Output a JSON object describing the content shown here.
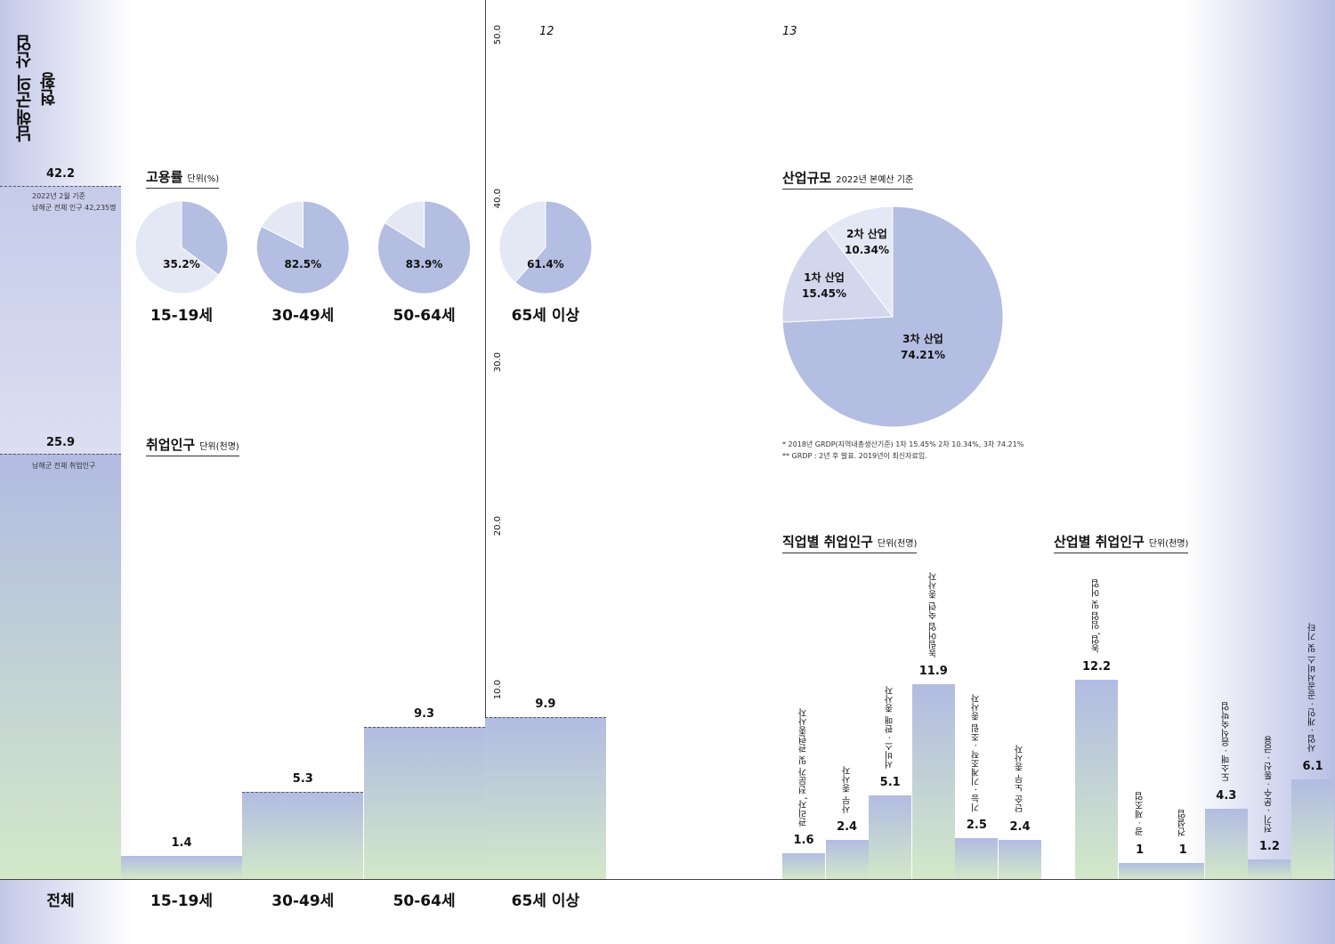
{
  "title": "남해군의 산업 현황",
  "pages": [
    "12",
    "13"
  ],
  "total": {
    "label": "전체",
    "population_value": "42.2",
    "population_note": [
      "2022년 2월 기준",
      "남해군 전체 인구 42,235명"
    ],
    "employed_value": "25.9",
    "employed_note": "남해군 전체 취업인구"
  },
  "employment_rate": {
    "title": "고용률",
    "unit": "단위(%)"
  },
  "employed": {
    "title": "취업인구",
    "unit": "단위(천명)"
  },
  "axis": {
    "ticks": [
      "0",
      "10.0",
      "20.0",
      "30.0",
      "40.0",
      "50.0"
    ],
    "unit": "단위(천명)"
  },
  "industry_scale": {
    "title": "산업규모",
    "subtitle": "2022년 본예산 기준",
    "notes": [
      "* 2018년 GRDP(지역내총생산기준) 1차 15.45% 2차 10.34%, 3차 74.21%",
      "** GRDP : 2년 후 발표. 2019년이 최신자료임."
    ]
  },
  "occupation": {
    "title": "직업별 취업인구",
    "unit": "단위(천명)"
  },
  "industry": {
    "title": "산업별 취업인구",
    "unit": "단위(천명)"
  },
  "colors": {
    "bar_top": "#b2bbe2",
    "bar_bottom": "#d3e8c8",
    "pie_dark": "#b4bde2",
    "pie_light": "#e4e7f4",
    "pie_mid": "#d3d7ee"
  },
  "chart_data": [
    {
      "type": "bar",
      "title": "취업인구",
      "ylabel": "단위(천명)",
      "ylim": [
        0,
        50
      ],
      "categories": [
        "전체",
        "15-19세",
        "30-49세",
        "50-64세",
        "65세 이상"
      ],
      "values": [
        25.9,
        1.4,
        5.3,
        9.3,
        9.9
      ],
      "reference": {
        "label": "남해군 전체 인구",
        "value": 42.2
      }
    },
    {
      "type": "pie",
      "title": "고용률",
      "unit": "%",
      "categories": [
        "15-19세",
        "30-49세",
        "50-64세",
        "65세 이상"
      ],
      "values": [
        35.2,
        82.5,
        83.9,
        61.4
      ],
      "labels": [
        "35.2%",
        "82.5%",
        "83.9%",
        "61.4%"
      ]
    },
    {
      "type": "pie",
      "title": "산업규모",
      "slices": [
        {
          "name": "3차 산업",
          "value": 74.21,
          "label": "74.21%"
        },
        {
          "name": "1차 산업",
          "value": 15.45,
          "label": "15.45%"
        },
        {
          "name": "2차 산업",
          "value": 10.34,
          "label": "10.34%"
        }
      ]
    },
    {
      "type": "bar",
      "title": "직업별 취업인구",
      "unit": "단위(천명)",
      "categories": [
        "관리자, 전문가 및 관련종사자",
        "사무 종사자",
        "서비스 · 판매 종사자",
        "농림어업 숙련 종사자",
        "기능 · 기계조작 · 조립 종사자",
        "단순 노무 종사자"
      ],
      "values": [
        1.6,
        2.4,
        5.1,
        11.9,
        2.5,
        2.4
      ]
    },
    {
      "type": "bar",
      "title": "산업별 취업인구",
      "unit": "단위(천명)",
      "categories": [
        "농업, 임업 및 어업",
        "광 · 제조업",
        "건설업",
        "도소매 · 음식숙박업",
        "전기 · 운수 · 통신 · 금융",
        "사업 · 개인 · 공공서비스 및 기타"
      ],
      "values": [
        12.2,
        1.0,
        1.0,
        4.3,
        1.2,
        6.1
      ]
    }
  ]
}
